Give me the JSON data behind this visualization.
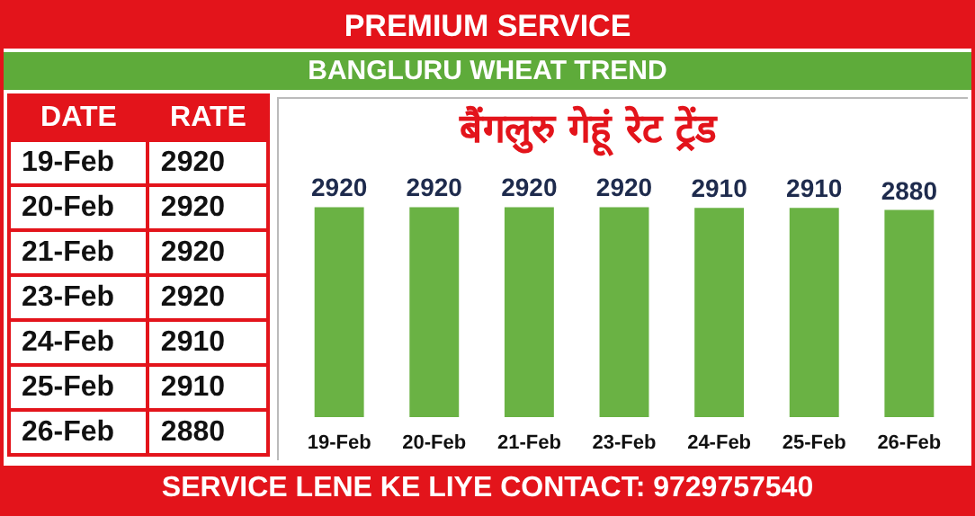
{
  "chart_data": {
    "type": "bar",
    "title": "PREMIUM SERVICE",
    "subtitle": "BANGLURU WHEAT TREND",
    "annotations": [
      "बैंगलुरु गेहूं रेट ट्रेंड",
      "SERVICE LENE KE LIYE CONTACT: 9729757540",
      "DATE",
      "RATE",
      "19-Feb",
      "2920",
      "20-Feb",
      "2920",
      "21-Feb",
      "2920",
      "23-Feb",
      "2920",
      "24-Feb",
      "2910",
      "25-Feb",
      "2910",
      "26-Feb",
      "2880"
    ],
    "categories": [
      "19-Feb",
      "20-Feb",
      "21-Feb",
      "23-Feb",
      "24-Feb",
      "25-Feb",
      "26-Feb"
    ],
    "values": [
      2920,
      2920,
      2920,
      2920,
      2910,
      2910,
      2880
    ],
    "color": "#6ab244",
    "tick_labels": "x",
    "data_labels": true,
    "grid": false
  }
}
